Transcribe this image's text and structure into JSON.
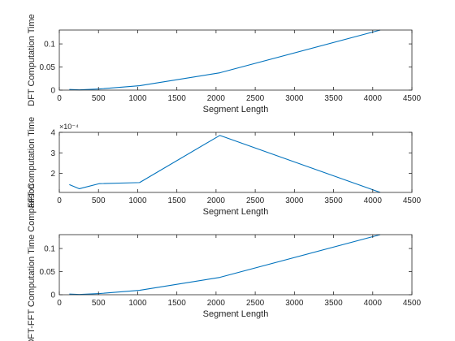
{
  "chart_data": [
    {
      "type": "line",
      "title": "",
      "xlabel": "Segment Length",
      "ylabel": "DFT Computation Time",
      "xlim": [
        0,
        4500
      ],
      "ylim": [
        0,
        0.13
      ],
      "x_ticks": [
        "0",
        "500",
        "1000",
        "1500",
        "2000",
        "2500",
        "3000",
        "3500",
        "4000",
        "4500"
      ],
      "y_ticks": [
        "0",
        "0.05",
        "0.1"
      ],
      "y_exponent": "",
      "grid": false,
      "series": [
        {
          "x": [
            128,
            256,
            512,
            1024,
            2048,
            4096
          ],
          "y": [
            0.0015,
            0.0006,
            0.0025,
            0.0095,
            0.0375,
            0.13
          ],
          "color": "#0072BD"
        }
      ]
    },
    {
      "type": "line",
      "title": "",
      "xlabel": "Segment Length",
      "ylabel": "FFT Computation Time",
      "xlim": [
        0,
        4500
      ],
      "ylim": [
        1.07,
        4
      ],
      "x_ticks": [
        "0",
        "500",
        "1000",
        "1500",
        "2000",
        "2500",
        "3000",
        "3500",
        "4000",
        "4500"
      ],
      "y_ticks": [
        "2",
        "3",
        "4"
      ],
      "y_exponent": "×10⁻⁴",
      "grid": false,
      "series": [
        {
          "x": [
            128,
            256,
            512,
            1024,
            2048,
            4096
          ],
          "y": [
            1.45,
            1.25,
            1.5,
            1.55,
            3.85,
            1.07
          ],
          "color": "#0072BD"
        }
      ]
    },
    {
      "type": "line",
      "title": "",
      "xlabel": "Segment Length",
      "ylabel": "DFT-FFT Computation Time Comparison",
      "xlim": [
        0,
        4500
      ],
      "ylim": [
        0,
        0.13
      ],
      "x_ticks": [
        "0",
        "500",
        "1000",
        "1500",
        "2000",
        "2500",
        "3000",
        "3500",
        "4000",
        "4500"
      ],
      "y_ticks": [
        "0",
        "0.05",
        "0.1"
      ],
      "y_exponent": "",
      "grid": false,
      "series": [
        {
          "x": [
            128,
            256,
            512,
            1024,
            2048,
            4096
          ],
          "y": [
            0.0015,
            0.0006,
            0.0025,
            0.0095,
            0.0375,
            0.13
          ],
          "color": "#0072BD"
        }
      ]
    }
  ]
}
